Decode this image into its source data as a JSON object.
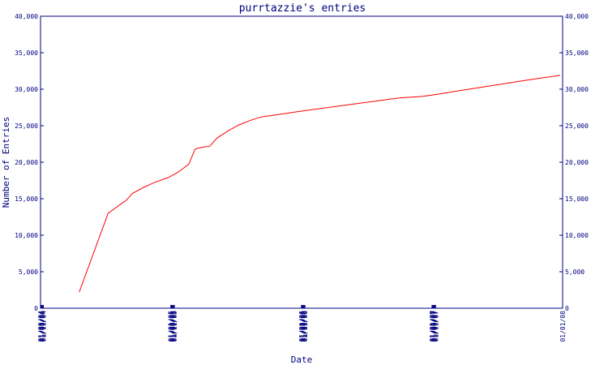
{
  "chart_data": {
    "type": "line",
    "title": "purrtazzie's entries",
    "xlabel": "Date",
    "ylabel": "Number of Entries",
    "ylim": [
      0,
      40000
    ],
    "yticks": [
      "0",
      "5,000",
      "10,000",
      "15,000",
      "20,000",
      "25,000",
      "30,000",
      "35,000",
      "40,000"
    ],
    "xticks": [
      "01/03/04",
      "01/05/04",
      "01/07/04",
      "01/09/04",
      "01/11/04",
      "01/01/05",
      "01/03/05",
      "01/05/05",
      "01/07/05",
      "01/09/05",
      "01/11/05",
      "01/01/06",
      "01/03/06",
      "01/05/06",
      "01/07/06",
      "01/09/06",
      "01/11/06",
      "01/01/07",
      "01/03/07",
      "01/05/07",
      "01/07/07",
      "01/09/07",
      "01/11/07",
      "01/01/08"
    ],
    "grid": false,
    "line_color": "#ff0000",
    "axis_color": "#000080",
    "series": [
      {
        "x": [
          "2004-04-20",
          "2004-07-10",
          "2004-08-15",
          "2004-08-30",
          "2004-09-15",
          "2004-10-15",
          "2004-11-15",
          "2004-12-25",
          "2005-01-20",
          "2005-02-20",
          "2005-03-10",
          "2005-03-25",
          "2005-04-20",
          "2005-05-10",
          "2005-06-10",
          "2005-07-10",
          "2005-08-10",
          "2005-09-10",
          "2005-10-10",
          "2006-01-01",
          "2006-04-01",
          "2006-07-01",
          "2006-10-01",
          "2006-12-01",
          "2007-01-01",
          "2007-04-01",
          "2007-07-01",
          "2007-10-01",
          "2007-12-25"
        ],
        "values": [
          2200,
          13000,
          14300,
          14800,
          15700,
          16500,
          17200,
          17900,
          18600,
          19700,
          21800,
          22000,
          22200,
          23300,
          24300,
          25100,
          25700,
          26200,
          26400,
          27000,
          27600,
          28200,
          28800,
          29000,
          29200,
          29900,
          30600,
          31300,
          31900
        ]
      }
    ]
  }
}
